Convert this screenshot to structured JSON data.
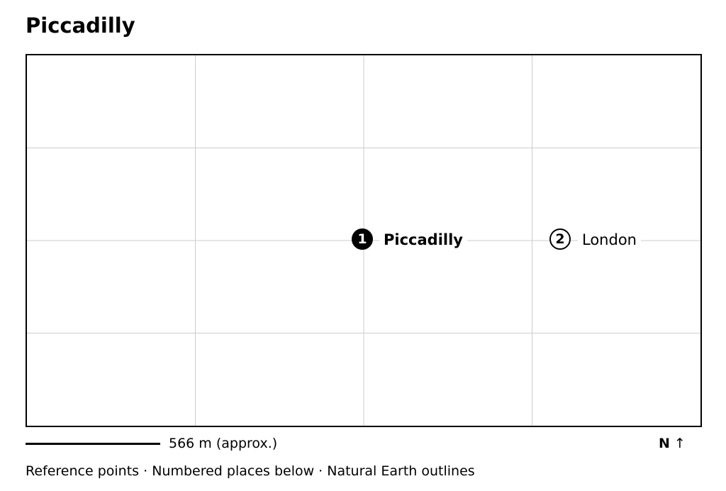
{
  "title": "Piccadilly",
  "places": [
    {
      "number": "1",
      "name": "Piccadilly",
      "primary": true
    },
    {
      "number": "2",
      "name": "London",
      "primary": false
    }
  ],
  "scale": {
    "label": "566 m (approx.)"
  },
  "north": {
    "letter": "N",
    "arrow": "↑"
  },
  "footer": "Reference points · Numbered places below · Natural Earth outlines",
  "colors": {
    "ink": "#000000",
    "grid": "#cccccc",
    "background": "#ffffff"
  }
}
